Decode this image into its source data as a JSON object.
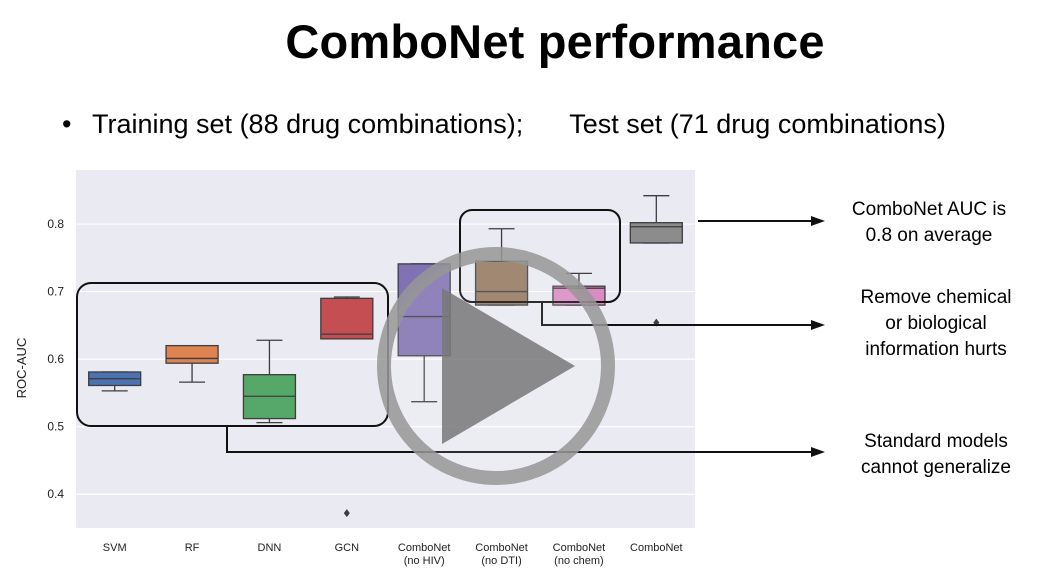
{
  "slide": {
    "title": "ComboNet performance",
    "bullet_symbol": "•",
    "bullet_text_1": "Training set (88 drug combinations);",
    "bullet_text_2": "Test set (71 drug combinations)"
  },
  "annotations": {
    "combonet_auc_line1": "ComboNet AUC is",
    "combonet_auc_line2": "0.8 on average",
    "remove_info_line1": "Remove chemical",
    "remove_info_line2": "or biological",
    "remove_info_line3": "information hurts",
    "standard_line1": "Standard models",
    "standard_line2": "cannot generalize"
  },
  "player": {
    "play_icon": "play-icon"
  },
  "colors": {
    "plot_bg": "#eaeaf2",
    "grid": "#ffffff",
    "SVM": "#4c72b0",
    "RF": "#dd8452",
    "DNN": "#55a868",
    "GCN": "#c44e52",
    "ComboNet (no HIV)": "#8172b3",
    "ComboNet (no DTI)": "#937860",
    "ComboNet (no chem)": "#da8bc3",
    "ComboNet": "#8c8c8c"
  },
  "chart_data": {
    "type": "box",
    "title": "",
    "xlabel": "",
    "ylabel": "ROC-AUC",
    "ylim": [
      0.35,
      0.88
    ],
    "yticks": [
      "0.4",
      "0.5",
      "0.6",
      "0.7",
      "0.8"
    ],
    "grid": true,
    "categories": [
      {
        "line1": "SVM",
        "line2": ""
      },
      {
        "line1": "RF",
        "line2": ""
      },
      {
        "line1": "DNN",
        "line2": ""
      },
      {
        "line1": "GCN",
        "line2": ""
      },
      {
        "line1": "ComboNet",
        "line2": "(no HIV)"
      },
      {
        "line1": "ComboNet",
        "line2": "(no DTI)"
      },
      {
        "line1": "ComboNet",
        "line2": "(no chem)"
      },
      {
        "line1": "ComboNet",
        "line2": ""
      }
    ],
    "boxes": [
      {
        "name": "SVM",
        "whislo": 0.553,
        "q1": 0.561,
        "med": 0.571,
        "q3": 0.581,
        "whishi": 0.581,
        "fliers": []
      },
      {
        "name": "RF",
        "whislo": 0.566,
        "q1": 0.594,
        "med": 0.601,
        "q3": 0.62,
        "whishi": 0.62,
        "fliers": []
      },
      {
        "name": "DNN",
        "whislo": 0.506,
        "q1": 0.512,
        "med": 0.545,
        "q3": 0.577,
        "whishi": 0.628,
        "fliers": []
      },
      {
        "name": "GCN",
        "whislo": 0.63,
        "q1": 0.63,
        "med": 0.637,
        "q3": 0.69,
        "whishi": 0.692,
        "fliers": [
          0.372
        ]
      },
      {
        "name": "ComboNet (no HIV)",
        "whislo": 0.537,
        "q1": 0.605,
        "med": 0.663,
        "q3": 0.741,
        "whishi": 0.741,
        "fliers": []
      },
      {
        "name": "ComboNet (no DTI)",
        "whislo": 0.68,
        "q1": 0.68,
        "med": 0.7,
        "q3": 0.745,
        "whishi": 0.793,
        "fliers": []
      },
      {
        "name": "ComboNet (no chem)",
        "whislo": 0.68,
        "q1": 0.68,
        "med": 0.705,
        "q3": 0.708,
        "whishi": 0.727,
        "fliers": []
      },
      {
        "name": "ComboNet",
        "whislo": 0.772,
        "q1": 0.772,
        "med": 0.796,
        "q3": 0.802,
        "whishi": 0.842,
        "fliers": [
          0.654
        ]
      }
    ]
  }
}
